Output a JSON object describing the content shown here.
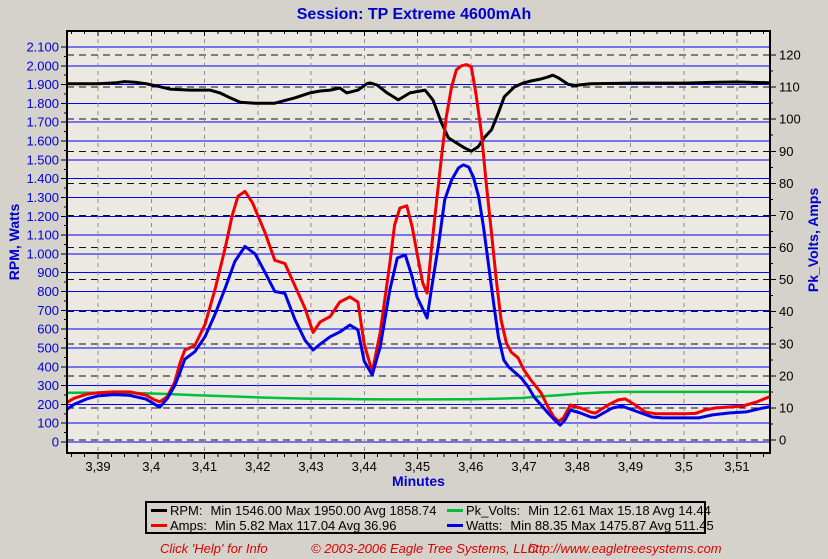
{
  "title": "Session: TP Extreme 4600mAh",
  "axes": {
    "left": {
      "label": "RPM, Watts",
      "tick_labels": [
        "2.100",
        "2.000",
        "1.900",
        "1.800",
        "1.700",
        "1.600",
        "1.500",
        "1.400",
        "1.300",
        "1.200",
        "1.100",
        "1.000",
        "900",
        "800",
        "700",
        "600",
        "500",
        "400",
        "300",
        "200",
        "100",
        "0"
      ]
    },
    "right": {
      "label": "Pk_Volts, Amps",
      "tick_labels": [
        "120",
        "110",
        "100",
        "90",
        "80",
        "70",
        "60",
        "50",
        "40",
        "30",
        "20",
        "10",
        "0"
      ]
    },
    "x": {
      "label": "Minutes",
      "tick_labels": [
        "3,39",
        "3,4",
        "3,41",
        "3,42",
        "3,43",
        "3,44",
        "3,45",
        "3,46",
        "3,47",
        "3,48",
        "3,49",
        "3,5",
        "3,51"
      ]
    }
  },
  "legend": {
    "entries": [
      {
        "label": "RPM:",
        "stats": "Min 1546.00 Max 1950.00 Avg 1858.74",
        "color": "#000000"
      },
      {
        "label": "Pk_Volts:",
        "stats": "Min 12.61 Max 15.18 Avg 14.44",
        "color": "#00bf3f"
      },
      {
        "label": "Amps:",
        "stats": "Min 5.82 Max 117.04 Avg 36.96",
        "color": "#f00000"
      },
      {
        "label": "Watts:",
        "stats": "Min 88.35 Max 1475.87 Avg 511.45",
        "color": "#0000e6"
      }
    ]
  },
  "footer": {
    "help": "Click 'Help' for Info",
    "copyright": "© 2003-2006 Eagle Tree Systems, LLC",
    "url": "http://www.eagletreesystems.com"
  },
  "colors": {
    "window_bg": "#d5d2cb",
    "plot_bg": "#ece9e2",
    "grid_blue": "#0000f5",
    "grid_dash_black": "#111111",
    "grid_dash_gray": "#8f8f8f",
    "left_tick_text": "#0000dd",
    "title_text": "#0000cd",
    "footer_text": "#dc0000"
  },
  "chart_data": {
    "type": "line",
    "title": "Session: TP Extreme 4600mAh",
    "xlabel": "Minutes",
    "ylabel_left": "RPM, Watts",
    "ylabel_right": "Pk_Volts, Amps",
    "x_range": [
      3.384,
      3.516
    ],
    "x_tick_start": 3.39,
    "x_tick_step": 0.01,
    "left_range": [
      0,
      2100
    ],
    "left_tick_step": 100,
    "right_range": [
      0,
      120
    ],
    "right_tick_step": 10,
    "grid": {
      "h_solid_on_left_100s": true,
      "h_dashed_on_right_10s": true,
      "v_dashed_on_x_ticks": true
    },
    "legend_position": "bottom",
    "series": [
      {
        "name": "RPM",
        "axis": "left",
        "color": "#000000",
        "width": 3,
        "stats": {
          "min": 1546.0,
          "max": 1950.0,
          "avg": 1858.74
        },
        "points": [
          [
            3.384,
            1905
          ],
          [
            3.39,
            1905
          ],
          [
            3.3935,
            1910
          ],
          [
            3.395,
            1916
          ],
          [
            3.3972,
            1912
          ],
          [
            3.399,
            1905
          ],
          [
            3.4007,
            1895
          ],
          [
            3.4035,
            1876
          ],
          [
            3.4073,
            1871
          ],
          [
            3.411,
            1871
          ],
          [
            3.4129,
            1856
          ],
          [
            3.4148,
            1830
          ],
          [
            3.4167,
            1806
          ],
          [
            3.4195,
            1801
          ],
          [
            3.4232,
            1801
          ],
          [
            3.427,
            1830
          ],
          [
            3.4298,
            1856
          ],
          [
            3.4317,
            1866
          ],
          [
            3.4336,
            1871
          ],
          [
            3.4354,
            1882
          ],
          [
            3.4367,
            1856
          ],
          [
            3.4388,
            1871
          ],
          [
            3.4405,
            1905
          ],
          [
            3.4411,
            1909
          ],
          [
            3.4424,
            1898
          ],
          [
            3.4443,
            1856
          ],
          [
            3.4464,
            1819
          ],
          [
            3.4486,
            1856
          ],
          [
            3.4514,
            1871
          ],
          [
            3.4529,
            1819
          ],
          [
            3.4545,
            1697
          ],
          [
            3.4558,
            1617
          ],
          [
            3.4573,
            1590
          ],
          [
            3.4588,
            1564
          ],
          [
            3.4601,
            1546
          ],
          [
            3.4614,
            1570
          ],
          [
            3.4625,
            1617
          ],
          [
            3.4639,
            1660
          ],
          [
            3.4652,
            1750
          ],
          [
            3.4663,
            1835
          ],
          [
            3.4682,
            1888
          ],
          [
            3.4699,
            1909
          ],
          [
            3.4713,
            1919
          ],
          [
            3.4732,
            1930
          ],
          [
            3.4745,
            1941
          ],
          [
            3.4754,
            1950
          ],
          [
            3.4765,
            1935
          ],
          [
            3.4783,
            1901
          ],
          [
            3.4796,
            1896
          ],
          [
            3.4825,
            1905
          ],
          [
            3.49,
            1908
          ],
          [
            3.5,
            1908
          ],
          [
            3.505,
            1912
          ],
          [
            3.51,
            1914
          ],
          [
            3.516,
            1910
          ]
        ]
      },
      {
        "name": "Pk_Volts",
        "axis": "right",
        "color": "#00bf3f",
        "width": 2.5,
        "stats": {
          "min": 12.61,
          "max": 15.18,
          "avg": 14.44
        },
        "points": [
          [
            3.384,
            14.7
          ],
          [
            3.39,
            14.75
          ],
          [
            3.3988,
            14.6
          ],
          [
            3.4035,
            14.3
          ],
          [
            3.4092,
            13.9
          ],
          [
            3.4148,
            13.6
          ],
          [
            3.4214,
            13.2
          ],
          [
            3.4289,
            12.9
          ],
          [
            3.4354,
            12.8
          ],
          [
            3.44,
            12.7
          ],
          [
            3.4467,
            12.65
          ],
          [
            3.4533,
            12.65
          ],
          [
            3.4599,
            12.7
          ],
          [
            3.4657,
            12.9
          ],
          [
            3.4695,
            13.1
          ],
          [
            3.4732,
            13.6
          ],
          [
            3.4768,
            14.0
          ],
          [
            3.4806,
            14.5
          ],
          [
            3.4843,
            14.8
          ],
          [
            3.488,
            15.0
          ],
          [
            3.4956,
            15.0
          ],
          [
            3.5049,
            15.0
          ],
          [
            3.516,
            15.0
          ]
        ]
      },
      {
        "name": "Amps",
        "axis": "right",
        "color": "#f00000",
        "width": 3,
        "stats": {
          "min": 5.82,
          "max": 117.04,
          "avg": 36.96
        },
        "points": [
          [
            3.384,
            11.5
          ],
          [
            3.3855,
            13.0
          ],
          [
            3.388,
            14.3
          ],
          [
            3.39,
            14.7
          ],
          [
            3.393,
            15.0
          ],
          [
            3.396,
            15.0
          ],
          [
            3.399,
            14.0
          ],
          [
            3.4005,
            12.6
          ],
          [
            3.4016,
            11.9
          ],
          [
            3.403,
            13.5
          ],
          [
            3.4044,
            18.0
          ],
          [
            3.4054,
            24.0
          ],
          [
            3.4063,
            28.0
          ],
          [
            3.4082,
            29.5
          ],
          [
            3.4101,
            36.0
          ],
          [
            3.412,
            47.0
          ],
          [
            3.4139,
            60.0
          ],
          [
            3.4152,
            70.0
          ],
          [
            3.4163,
            76.0
          ],
          [
            3.4176,
            77.5
          ],
          [
            3.419,
            74.0
          ],
          [
            3.4214,
            64.5
          ],
          [
            3.4232,
            56.0
          ],
          [
            3.4251,
            55.0
          ],
          [
            3.427,
            48.0
          ],
          [
            3.4289,
            41.0
          ],
          [
            3.4304,
            33.5
          ],
          [
            3.4317,
            36.8
          ],
          [
            3.4336,
            38.5
          ],
          [
            3.4354,
            43.0
          ],
          [
            3.4373,
            44.6
          ],
          [
            3.4388,
            43.0
          ],
          [
            3.44,
            30.0
          ],
          [
            3.4415,
            21.2
          ],
          [
            3.443,
            33.5
          ],
          [
            3.4448,
            55.0
          ],
          [
            3.4457,
            67.0
          ],
          [
            3.4467,
            72.3
          ],
          [
            3.448,
            73.0
          ],
          [
            3.449,
            66.4
          ],
          [
            3.4499,
            58.3
          ],
          [
            3.451,
            48.9
          ],
          [
            3.4518,
            45.8
          ],
          [
            3.4526,
            59.2
          ],
          [
            3.4536,
            74.8
          ],
          [
            3.4545,
            88.2
          ],
          [
            3.4554,
            100.7
          ],
          [
            3.4564,
            110.1
          ],
          [
            3.4573,
            115.4
          ],
          [
            3.4582,
            116.6
          ],
          [
            3.4592,
            117.0
          ],
          [
            3.4601,
            116.3
          ],
          [
            3.461,
            107.6
          ],
          [
            3.462,
            95.7
          ],
          [
            3.4629,
            80.1
          ],
          [
            3.4639,
            64.5
          ],
          [
            3.4648,
            49.9
          ],
          [
            3.4657,
            37.4
          ],
          [
            3.4667,
            30.2
          ],
          [
            3.4676,
            27.4
          ],
          [
            3.4689,
            25.6
          ],
          [
            3.47,
            21.8
          ],
          [
            3.4713,
            18.7
          ],
          [
            3.4732,
            14.7
          ],
          [
            3.4745,
            10.3
          ],
          [
            3.4756,
            7.2
          ],
          [
            3.4765,
            5.8
          ],
          [
            3.4774,
            6.9
          ],
          [
            3.4787,
            10.9
          ],
          [
            3.4806,
            10.0
          ],
          [
            3.4825,
            8.7
          ],
          [
            3.4834,
            8.4
          ],
          [
            3.4858,
            10.9
          ],
          [
            3.4877,
            12.5
          ],
          [
            3.489,
            12.8
          ],
          [
            3.4909,
            10.9
          ],
          [
            3.4928,
            8.7
          ],
          [
            3.4947,
            8.2
          ],
          [
            3.5,
            8.2
          ],
          [
            3.5022,
            8.3
          ],
          [
            3.5041,
            9.4
          ],
          [
            3.506,
            10.0
          ],
          [
            3.5085,
            10.3
          ],
          [
            3.5111,
            10.6
          ],
          [
            3.5136,
            11.8
          ],
          [
            3.516,
            13.4
          ]
        ]
      },
      {
        "name": "Watts",
        "axis": "left",
        "color": "#0000e6",
        "width": 3,
        "stats": {
          "min": 88.35,
          "max": 1475.87,
          "avg": 511.45
        },
        "points": [
          [
            3.384,
            170
          ],
          [
            3.3855,
            200
          ],
          [
            3.388,
            230
          ],
          [
            3.39,
            245
          ],
          [
            3.393,
            252
          ],
          [
            3.396,
            248
          ],
          [
            3.399,
            228
          ],
          [
            3.4016,
            185
          ],
          [
            3.403,
            230
          ],
          [
            3.4044,
            300
          ],
          [
            3.4054,
            370
          ],
          [
            3.4063,
            440
          ],
          [
            3.4082,
            480
          ],
          [
            3.4101,
            560
          ],
          [
            3.412,
            680
          ],
          [
            3.4139,
            820
          ],
          [
            3.4157,
            960
          ],
          [
            3.4176,
            1040
          ],
          [
            3.4195,
            1000
          ],
          [
            3.4214,
            900
          ],
          [
            3.4232,
            800
          ],
          [
            3.4251,
            790
          ],
          [
            3.427,
            650
          ],
          [
            3.4289,
            540
          ],
          [
            3.4304,
            489
          ],
          [
            3.4317,
            520
          ],
          [
            3.4336,
            560
          ],
          [
            3.4354,
            585
          ],
          [
            3.4373,
            622
          ],
          [
            3.4388,
            596
          ],
          [
            3.44,
            430
          ],
          [
            3.4415,
            356
          ],
          [
            3.443,
            505
          ],
          [
            3.4448,
            808
          ],
          [
            3.4462,
            978
          ],
          [
            3.4477,
            994
          ],
          [
            3.449,
            877
          ],
          [
            3.4499,
            771
          ],
          [
            3.4518,
            659
          ],
          [
            3.4526,
            808
          ],
          [
            3.454,
            1058
          ],
          [
            3.4551,
            1287
          ],
          [
            3.4564,
            1393
          ],
          [
            3.4577,
            1457
          ],
          [
            3.4586,
            1473
          ],
          [
            3.4596,
            1462
          ],
          [
            3.4605,
            1409
          ],
          [
            3.4615,
            1303
          ],
          [
            3.4624,
            1143
          ],
          [
            3.4633,
            952
          ],
          [
            3.4643,
            739
          ],
          [
            3.4652,
            558
          ],
          [
            3.4662,
            436
          ],
          [
            3.4671,
            399
          ],
          [
            3.4682,
            372
          ],
          [
            3.4695,
            340
          ],
          [
            3.4708,
            292
          ],
          [
            3.4719,
            239
          ],
          [
            3.4732,
            197
          ],
          [
            3.4745,
            154
          ],
          [
            3.4756,
            122
          ],
          [
            3.4768,
            90
          ],
          [
            3.4777,
            117
          ],
          [
            3.4787,
            170
          ],
          [
            3.4806,
            154
          ],
          [
            3.4825,
            133
          ],
          [
            3.4834,
            130
          ],
          [
            3.4866,
            181
          ],
          [
            3.4884,
            191
          ],
          [
            3.4914,
            160
          ],
          [
            3.4941,
            133
          ],
          [
            3.496,
            128
          ],
          [
            3.5028,
            128
          ],
          [
            3.5054,
            144
          ],
          [
            3.5085,
            154
          ],
          [
            3.5117,
            160
          ],
          [
            3.5149,
            181
          ],
          [
            3.516,
            186
          ]
        ]
      }
    ]
  }
}
